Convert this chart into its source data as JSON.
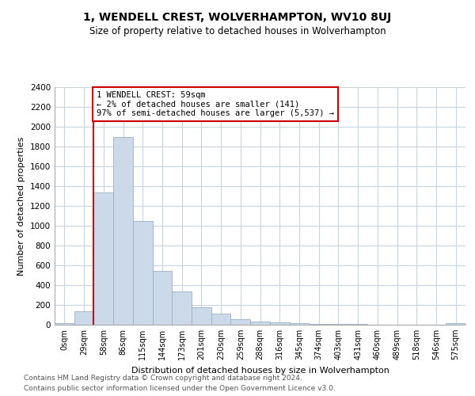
{
  "title": "1, WENDELL CREST, WOLVERHAMPTON, WV10 8UJ",
  "subtitle": "Size of property relative to detached houses in Wolverhampton",
  "xlabel": "Distribution of detached houses by size in Wolverhampton",
  "ylabel": "Number of detached properties",
  "footnote1": "Contains HM Land Registry data © Crown copyright and database right 2024.",
  "footnote2": "Contains public sector information licensed under the Open Government Licence v3.0.",
  "annotation_line1": "1 WENDELL CREST: 59sqm",
  "annotation_line2": "← 2% of detached houses are smaller (141)",
  "annotation_line3": "97% of semi-detached houses are larger (5,537) →",
  "bar_color": "#ccd9e8",
  "bar_edge_color": "#9ab0c8",
  "marker_line_color": "#cc0000",
  "annotation_box_edge": "#cc0000",
  "categories": [
    "0sqm",
    "29sqm",
    "58sqm",
    "86sqm",
    "115sqm",
    "144sqm",
    "173sqm",
    "201sqm",
    "230sqm",
    "259sqm",
    "288sqm",
    "316sqm",
    "345sqm",
    "374sqm",
    "403sqm",
    "431sqm",
    "460sqm",
    "489sqm",
    "518sqm",
    "546sqm",
    "575sqm"
  ],
  "values": [
    15,
    135,
    1340,
    1900,
    1050,
    545,
    340,
    175,
    110,
    60,
    35,
    25,
    20,
    10,
    5,
    10,
    2,
    2,
    0,
    2,
    15
  ],
  "marker_bar_index": 2,
  "ylim": [
    0,
    2400
  ],
  "yticks": [
    0,
    200,
    400,
    600,
    800,
    1000,
    1200,
    1400,
    1600,
    1800,
    2000,
    2200,
    2400
  ],
  "background_color": "#ffffff",
  "grid_color": "#c8d4e0",
  "title_fontsize": 10,
  "subtitle_fontsize": 8.5,
  "axis_label_fontsize": 8,
  "tick_fontsize": 7.5,
  "footnote_fontsize": 6.5
}
